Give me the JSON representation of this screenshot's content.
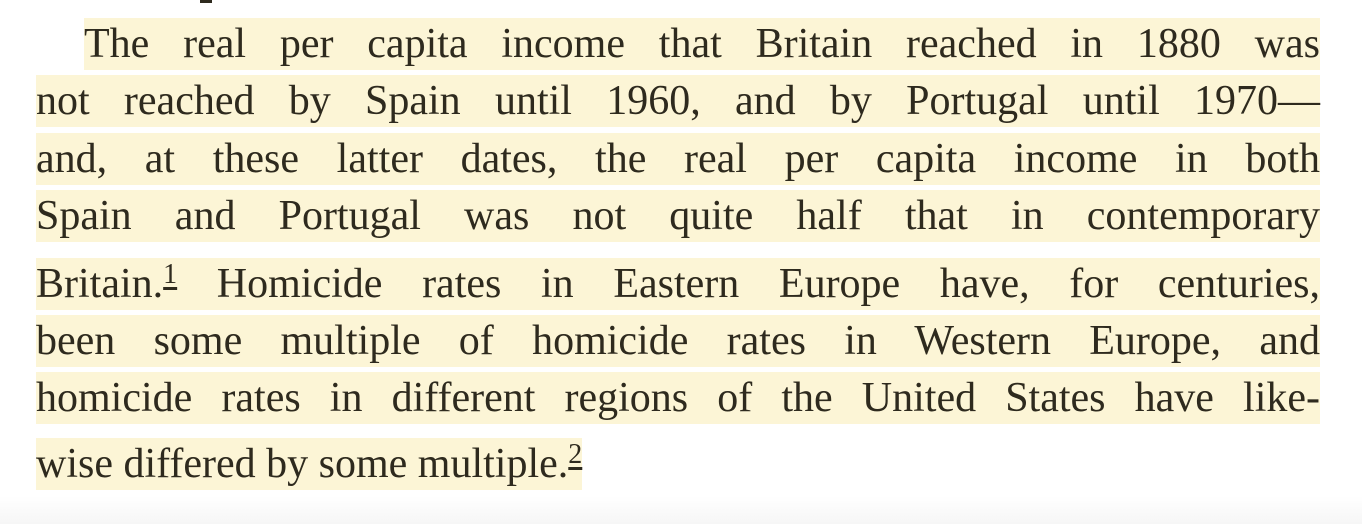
{
  "passage": {
    "lines": [
      "The real per capita income that Britain reached in 1880 was",
      "not reached by Spain until 1960, and by Portugal until 1970—",
      "and, at these latter dates, the real per capita income in both",
      "Spain and Portugal was not quite half that in contemporary"
    ],
    "line5_before": "Britain.",
    "footnote1": "1",
    "line5_after": " Homicide rates in Eastern Europe have, for centuries,",
    "line6": "been some multiple of homicide rates in Western Europe, and",
    "line7": "homicide rates in different regions of the United States have like-",
    "line8_before": "wise differed by some multiple.",
    "footnote2": "2"
  },
  "colors": {
    "highlight": "#fcf5d6",
    "text": "#2e2a1e"
  }
}
